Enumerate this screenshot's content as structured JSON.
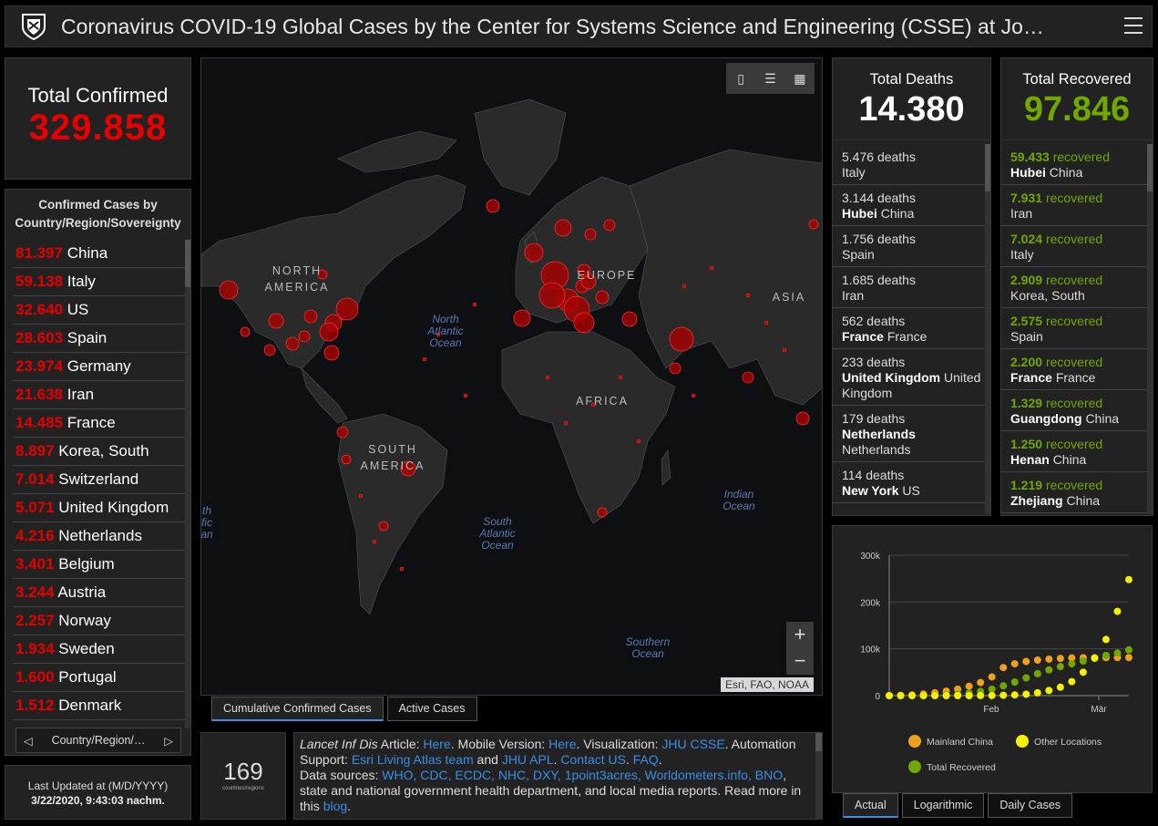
{
  "header": {
    "title": "Coronavirus COVID-19 Global Cases by the Center for Systems Science and Engineering (CSSE) at Jo…"
  },
  "total_confirmed": {
    "label": "Total Confirmed",
    "value": "329.858"
  },
  "country_list": {
    "title": "Confirmed Cases by Country/Region/Sovereignty",
    "rows": [
      {
        "n": "81.397",
        "name": "China"
      },
      {
        "n": "59.138",
        "name": "Italy"
      },
      {
        "n": "32.640",
        "name": "US"
      },
      {
        "n": "28.603",
        "name": "Spain"
      },
      {
        "n": "23.974",
        "name": "Germany"
      },
      {
        "n": "21.638",
        "name": "Iran"
      },
      {
        "n": "14.485",
        "name": "France"
      },
      {
        "n": "8.897",
        "name": "Korea, South"
      },
      {
        "n": "7.014",
        "name": "Switzerland"
      },
      {
        "n": "5.071",
        "name": "United Kingdom"
      },
      {
        "n": "4.216",
        "name": "Netherlands"
      },
      {
        "n": "3.401",
        "name": "Belgium"
      },
      {
        "n": "3.244",
        "name": "Austria"
      },
      {
        "n": "2.257",
        "name": "Norway"
      },
      {
        "n": "1.934",
        "name": "Sweden"
      },
      {
        "n": "1.600",
        "name": "Portugal"
      },
      {
        "n": "1.512",
        "name": "Denmark"
      }
    ],
    "pager_label": "Country/Region/…"
  },
  "last_updated": {
    "label": "Last Updated at (M/D/YYYY)",
    "value": "3/22/2020, 9:43:03 nachm."
  },
  "map": {
    "attribution": "Esri, FAO, NOAA",
    "oceans": {
      "north_atlantic": "North Atlantic Ocean",
      "south_atlantic": "South Atlantic Ocean",
      "indian": "Indian Ocean",
      "southern": "Southern Ocean",
      "pacific_edge": "th fic an"
    },
    "continents": {
      "north_america": "NORTH AMERICA",
      "south_america": "SOUTH AMERICA",
      "europe": "EUROPE",
      "africa": "AFRICA",
      "asia": "ASIA"
    },
    "tabs": [
      "Cumulative Confirmed Cases",
      "Active Cases"
    ],
    "zoom_in": "+",
    "zoom_out": "−"
  },
  "countries_count": {
    "value": "169",
    "label": "countries/regions"
  },
  "sources": {
    "s1": "Lancet Inf Dis",
    "s2": " Article: ",
    "s3": "Here",
    "s4": ". Mobile Version: ",
    "s5": "Here",
    "s6": ". Visualization: ",
    "s7": "JHU CSSE",
    "s8": ". Automation Support: ",
    "s9": "Esri Living Atlas team",
    "s10": " and ",
    "s11": "JHU APL",
    "s12": ". ",
    "s13": "Contact US",
    "s14": ". ",
    "s15": "FAQ",
    "s16": ".",
    "s17": "Data sources: ",
    "s18": "WHO, CDC, ECDC, NHC, DXY, 1point3acres, Worldometers.info, BNO",
    "s19": ", state and national government health department, and local media reports.  Read more in this ",
    "s20": "blog",
    "s21": "."
  },
  "deaths": {
    "label": "Total Deaths",
    "value": "14.380",
    "rows": [
      {
        "n": "5.476",
        "unit": "deaths",
        "bold": "",
        "rest": "Italy"
      },
      {
        "n": "3.144",
        "unit": "deaths",
        "bold": "Hubei",
        "rest": "China"
      },
      {
        "n": "1.756",
        "unit": "deaths",
        "bold": "",
        "rest": "Spain"
      },
      {
        "n": "1.685",
        "unit": "deaths",
        "bold": "",
        "rest": "Iran"
      },
      {
        "n": "562",
        "unit": "deaths",
        "bold": "France",
        "rest": "France"
      },
      {
        "n": "233",
        "unit": "deaths",
        "bold": "United Kingdom",
        "rest": "United Kingdom"
      },
      {
        "n": "179",
        "unit": "deaths",
        "bold": "Netherlands",
        "rest": "Netherlands"
      },
      {
        "n": "114",
        "unit": "deaths",
        "bold": "New York",
        "rest": "US"
      }
    ]
  },
  "recovered": {
    "label": "Total Recovered",
    "value": "97.846",
    "rows": [
      {
        "n": "59.433",
        "unit": "recovered",
        "bold": "Hubei",
        "rest": "China"
      },
      {
        "n": "7.931",
        "unit": "recovered",
        "bold": "",
        "rest": "Iran"
      },
      {
        "n": "7.024",
        "unit": "recovered",
        "bold": "",
        "rest": "Italy"
      },
      {
        "n": "2.909",
        "unit": "recovered",
        "bold": "",
        "rest": "Korea, South"
      },
      {
        "n": "2.575",
        "unit": "recovered",
        "bold": "",
        "rest": "Spain"
      },
      {
        "n": "2.200",
        "unit": "recovered",
        "bold": "France",
        "rest": "France"
      },
      {
        "n": "1.329",
        "unit": "recovered",
        "bold": "Guangdong",
        "rest": "China"
      },
      {
        "n": "1.250",
        "unit": "recovered",
        "bold": "Henan",
        "rest": "China"
      },
      {
        "n": "1.219",
        "unit": "recovered",
        "bold": "Zhejiang",
        "rest": "China"
      }
    ]
  },
  "chart_tabs": [
    "Actual",
    "Logarithmic",
    "Daily Cases"
  ],
  "colors": {
    "confirmed": "#e60000",
    "recovered": "#70a800",
    "accent": "#3a8ee6",
    "mainland": "#f0a020",
    "other": "#f5f000"
  },
  "chart_data": {
    "type": "line",
    "x_ticks": [
      "Feb",
      "Mär"
    ],
    "y_ticks": [
      "0",
      "100k",
      "200k",
      "300k"
    ],
    "ylim": [
      0,
      300000
    ],
    "series": [
      {
        "name": "Mainland China",
        "color": "#f0a020",
        "values": [
          0,
          500,
          1500,
          3500,
          6000,
          9500,
          14000,
          20000,
          28000,
          40000,
          60000,
          68000,
          73000,
          76000,
          78000,
          79500,
          80500,
          81000,
          81200,
          81300,
          81400,
          81400
        ]
      },
      {
        "name": "Other Locations",
        "color": "#f5f000",
        "values": [
          0,
          0,
          0,
          0,
          0,
          0,
          0,
          0,
          200,
          400,
          800,
          1500,
          3000,
          6000,
          11000,
          18000,
          30000,
          50000,
          80000,
          120000,
          180000,
          248000
        ]
      },
      {
        "name": "Total Recovered",
        "color": "#70a800",
        "values": [
          0,
          0,
          100,
          300,
          800,
          1600,
          3000,
          5500,
          9000,
          14000,
          21000,
          29000,
          38000,
          47000,
          55000,
          62000,
          68000,
          74000,
          80000,
          86000,
          91000,
          97846
        ]
      }
    ]
  }
}
